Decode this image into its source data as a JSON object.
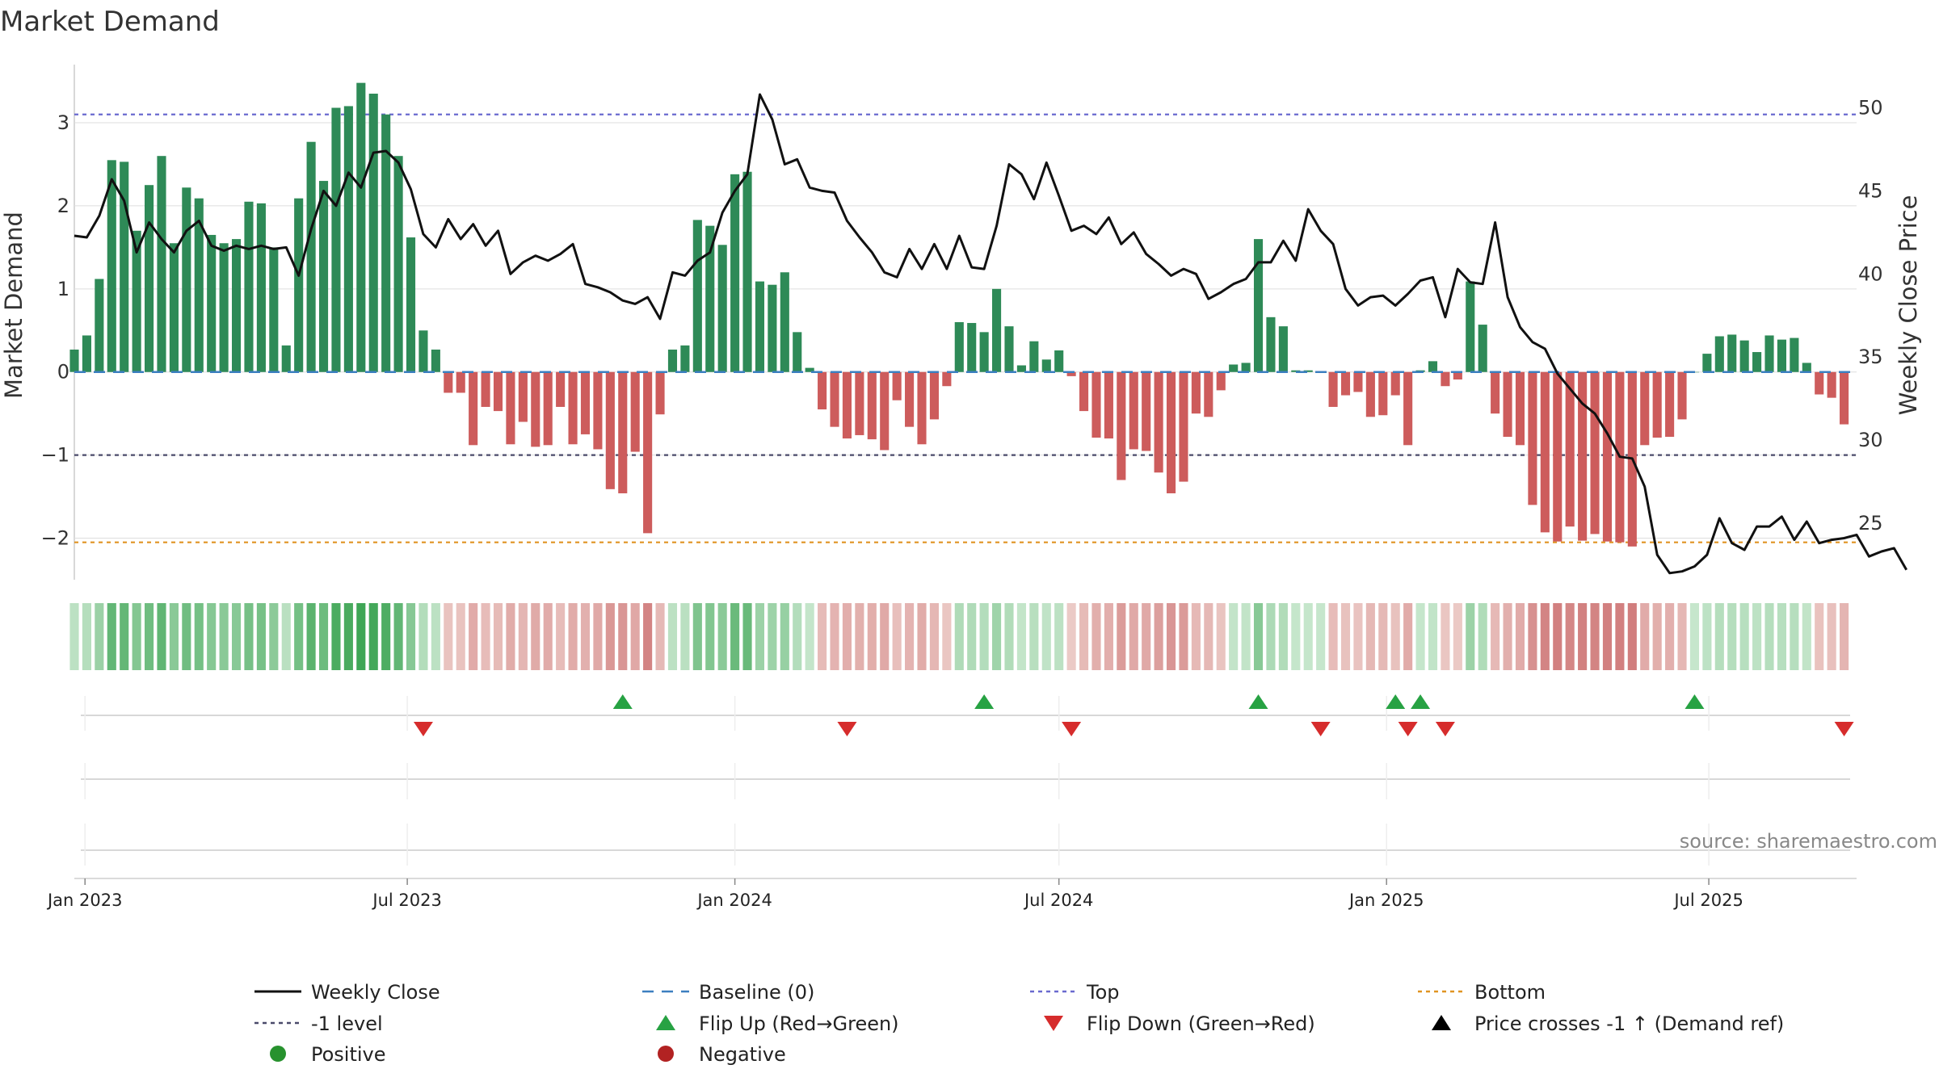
{
  "chart_data": {
    "type": "bar",
    "title": "Market Demand",
    "ylabel": "Market Demand",
    "y2label": "Weekly Close Price",
    "ylim": [
      -2.5,
      3.7
    ],
    "y2lim": [
      21.6,
      52.6
    ],
    "yticks": [
      -2,
      -1,
      0,
      1,
      2,
      3
    ],
    "yticklabels": [
      "−2",
      "−1",
      "0",
      "1",
      "2",
      "3"
    ],
    "y2ticks": [
      25,
      30,
      35,
      40,
      45,
      50
    ],
    "x_start": "2022-12-26",
    "x_end": "2025-09-22",
    "xticks": [
      {
        "date": "2023-01-01",
        "label": "Jan 2023"
      },
      {
        "date": "2023-07-01",
        "label": "Jul 2023"
      },
      {
        "date": "2024-01-01",
        "label": "Jan 2024"
      },
      {
        "date": "2024-07-01",
        "label": "Jul 2024"
      },
      {
        "date": "2025-01-01",
        "label": "Jan 2025"
      },
      {
        "date": "2025-07-01",
        "label": "Jul 2025"
      }
    ],
    "first_week": "2022-12-26",
    "demand": [
      0.27,
      0.44,
      1.12,
      2.55,
      2.53,
      1.7,
      2.25,
      2.6,
      1.55,
      2.22,
      2.09,
      1.65,
      1.55,
      1.6,
      2.05,
      2.03,
      1.5,
      0.32,
      2.09,
      2.77,
      2.3,
      3.18,
      3.2,
      3.48,
      3.35,
      3.1,
      2.6,
      1.62,
      0.5,
      0.27,
      -0.25,
      -0.25,
      -0.88,
      -0.42,
      -0.47,
      -0.87,
      -0.6,
      -0.9,
      -0.88,
      -0.42,
      -0.87,
      -0.75,
      -0.93,
      -1.41,
      -1.46,
      -0.96,
      -1.94,
      -0.51,
      0.27,
      0.32,
      1.83,
      1.76,
      1.53,
      2.38,
      2.41,
      1.09,
      1.05,
      1.2,
      0.48,
      0.05,
      -0.45,
      -0.66,
      -0.8,
      -0.76,
      -0.81,
      -0.94,
      -0.34,
      -0.66,
      -0.87,
      -0.57,
      -0.17,
      0.6,
      0.59,
      0.48,
      1.0,
      0.55,
      0.08,
      0.37,
      0.15,
      0.26,
      -0.05,
      -0.47,
      -0.79,
      -0.8,
      -1.3,
      -0.93,
      -0.95,
      -1.21,
      -1.46,
      -1.32,
      -0.5,
      -0.54,
      -0.22,
      0.09,
      0.11,
      1.6,
      0.66,
      0.55,
      0.02,
      0.02,
      0.01,
      -0.42,
      -0.28,
      -0.24,
      -0.54,
      -0.52,
      -0.28,
      -0.88,
      0.02,
      0.13,
      -0.17,
      -0.09,
      1.09,
      0.57,
      -0.5,
      -0.78,
      -0.88,
      -1.6,
      -1.93,
      -2.04,
      -1.86,
      -2.03,
      -1.95,
      -2.04,
      -2.05,
      -2.1,
      -0.88,
      -0.79,
      -0.78,
      -0.57,
      0.0,
      0.22,
      0.43,
      0.45,
      0.38,
      0.24,
      0.44,
      0.39,
      0.41,
      0.11,
      -0.27,
      -0.31,
      -0.63
    ],
    "close": [
      42.3,
      42.2,
      43.5,
      45.7,
      44.4,
      41.3,
      43.1,
      42.1,
      41.3,
      42.6,
      43.2,
      41.7,
      41.4,
      41.7,
      41.5,
      41.7,
      41.5,
      41.6,
      39.9,
      42.7,
      45.0,
      44.1,
      46.1,
      45.2,
      47.3,
      47.4,
      46.7,
      45.1,
      42.4,
      41.6,
      43.3,
      42.1,
      43.0,
      41.7,
      42.6,
      40.0,
      40.7,
      41.1,
      40.8,
      41.2,
      41.8,
      39.4,
      39.2,
      38.9,
      38.4,
      38.2,
      38.6,
      37.3,
      40.1,
      39.9,
      40.8,
      41.3,
      43.7,
      45.0,
      46.0,
      50.8,
      49.3,
      46.6,
      46.9,
      45.2,
      45.0,
      44.9,
      43.2,
      42.2,
      41.3,
      40.1,
      39.8,
      41.5,
      40.3,
      41.8,
      40.3,
      42.3,
      40.4,
      40.3,
      42.9,
      46.6,
      46.0,
      44.5,
      46.7,
      44.7,
      42.6,
      42.9,
      42.4,
      43.4,
      41.8,
      42.5,
      41.2,
      40.6,
      39.9,
      40.3,
      40.0,
      38.5,
      38.9,
      39.4,
      39.7,
      40.7,
      40.7,
      42.0,
      40.8,
      43.9,
      42.6,
      41.8,
      39.1,
      38.1,
      38.6,
      38.7,
      38.1,
      38.8,
      39.6,
      39.8,
      37.4,
      40.3,
      39.5,
      39.4,
      43.1,
      38.6,
      36.8,
      35.9,
      35.5,
      34.0,
      33.1,
      32.2,
      31.6,
      30.4,
      29.0,
      28.9,
      27.2,
      23.1,
      22.0,
      22.1,
      22.4,
      23.1,
      25.3,
      23.8,
      23.4,
      24.8,
      24.8,
      25.4,
      24.0,
      25.1,
      23.8,
      24.0,
      24.1,
      24.3,
      23.0,
      23.3,
      23.5,
      22.2
    ],
    "reference_lines": [
      {
        "name": "Top",
        "value": 3.1,
        "color": "#6a6acf"
      },
      {
        "name": "-1 level",
        "value": -1.0,
        "color": "#4a4a6a"
      },
      {
        "name": "Bottom",
        "value": -2.05,
        "color": "#e09422"
      },
      {
        "name": "Baseline (0)",
        "value": 0,
        "color": "#3c7fc0"
      }
    ],
    "flip_up_dates": [
      "2023-10-30",
      "2024-05-20",
      "2024-10-21",
      "2025-01-06",
      "2025-01-20",
      "2025-06-23"
    ],
    "flip_down_dates": [
      "2023-07-10",
      "2024-03-04",
      "2024-07-08",
      "2024-11-25",
      "2025-01-13",
      "2025-02-03",
      "2025-09-15"
    ],
    "colors": {
      "positive": "#2e8a57",
      "negative": "#cd5c5c",
      "close": "#111111",
      "flip_up": "#27a243",
      "flip_down": "#d62c2c",
      "grid": "#dddddd"
    },
    "legend": [
      {
        "label": "Weekly Close",
        "marker": "line",
        "color": "#111111"
      },
      {
        "label": "Baseline (0)",
        "marker": "dash",
        "color": "#3c7fc0"
      },
      {
        "label": "Top",
        "marker": "dot",
        "color": "#6a6acf"
      },
      {
        "label": "Bottom",
        "marker": "dot",
        "color": "#e09422"
      },
      {
        "label": "-1 level",
        "marker": "dot",
        "color": "#4a4a6a"
      },
      {
        "label": "Flip Up (Red→Green)",
        "marker": "tri-up",
        "color": "#27a243"
      },
      {
        "label": "Flip Down (Green→Red)",
        "marker": "tri-down",
        "color": "#d62c2c"
      },
      {
        "label": "Price crosses -1 ↑ (Demand ref)",
        "marker": "tri-up",
        "color": "#000000"
      },
      {
        "label": "Positive",
        "marker": "circle",
        "color": "#27922e"
      },
      {
        "label": "Negative",
        "marker": "circle",
        "color": "#b22222"
      }
    ],
    "source": "source: sharemaestro.com"
  }
}
